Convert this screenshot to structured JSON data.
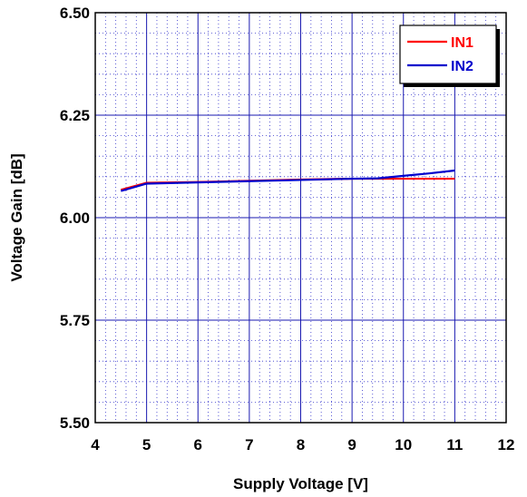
{
  "chart_data": {
    "type": "line",
    "xlabel": "Supply Voltage [V]",
    "ylabel": "Voltage Gain [dB]",
    "xlim": [
      4,
      12
    ],
    "ylim": [
      5.5,
      6.5
    ],
    "xticks": [
      "4",
      "5",
      "6",
      "7",
      "8",
      "9",
      "10",
      "11",
      "12"
    ],
    "yticks": [
      "5.50",
      "5.75",
      "6.00",
      "6.25",
      "6.50"
    ],
    "x_minor_divisions": 5,
    "y_minor_divisions": 5,
    "grid": true,
    "legend_position": "top-right",
    "series": [
      {
        "name": "IN1",
        "color": "#ff0000",
        "x": [
          4.5,
          5,
          6,
          7,
          8,
          9,
          10,
          11
        ],
        "y": [
          6.068,
          6.085,
          6.087,
          6.09,
          6.093,
          6.095,
          6.095,
          6.095
        ]
      },
      {
        "name": "IN2",
        "color": "#0000cc",
        "x": [
          4.5,
          5,
          6,
          7,
          8,
          9,
          9.5,
          10,
          10.5,
          11
        ],
        "y": [
          6.065,
          6.083,
          6.086,
          6.089,
          6.092,
          6.095,
          6.096,
          6.102,
          6.108,
          6.115
        ]
      }
    ]
  }
}
